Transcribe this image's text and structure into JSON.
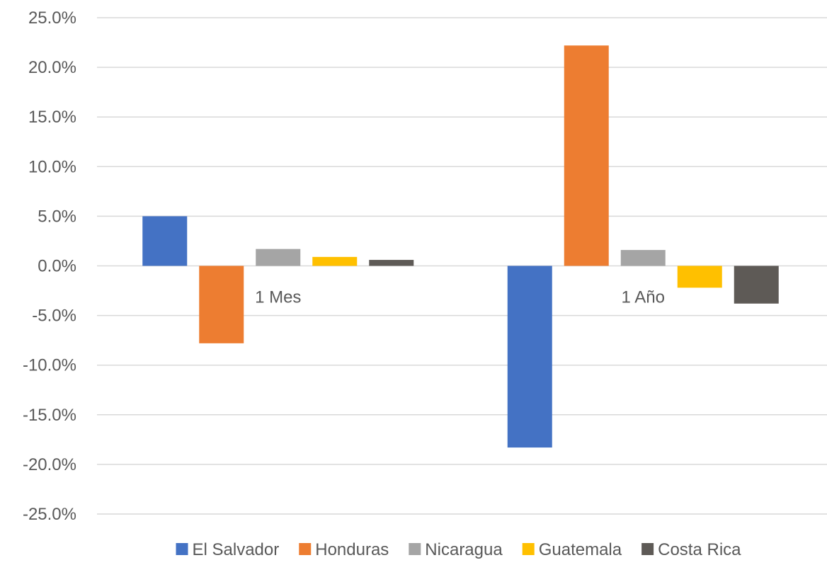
{
  "chart_data": {
    "type": "bar",
    "categories": [
      "1 Mes",
      "1 Año"
    ],
    "series": [
      {
        "name": "El Salvador",
        "color": "#4472C4",
        "values": [
          5.0,
          -18.3
        ]
      },
      {
        "name": "Honduras",
        "color": "#ED7D31",
        "values": [
          -7.8,
          22.2
        ]
      },
      {
        "name": "Nicaragua",
        "color": "#A5A5A5",
        "values": [
          1.7,
          1.6
        ]
      },
      {
        "name": "Guatemala",
        "color": "#FFC000",
        "values": [
          0.9,
          -2.2
        ]
      },
      {
        "name": "Costa Rica",
        "color": "#5E5A56",
        "values": [
          0.6,
          -3.8
        ]
      }
    ],
    "ylim": [
      -25,
      25
    ],
    "ytick_step": 5,
    "ytick_labels": [
      "25.0%",
      "20.0%",
      "15.0%",
      "10.0%",
      "5.0%",
      "0.0%",
      "-5.0%",
      "-10.0%",
      "-15.0%",
      "-20.0%",
      "-25.0%"
    ],
    "grid": true,
    "legend_position": "bottom"
  }
}
